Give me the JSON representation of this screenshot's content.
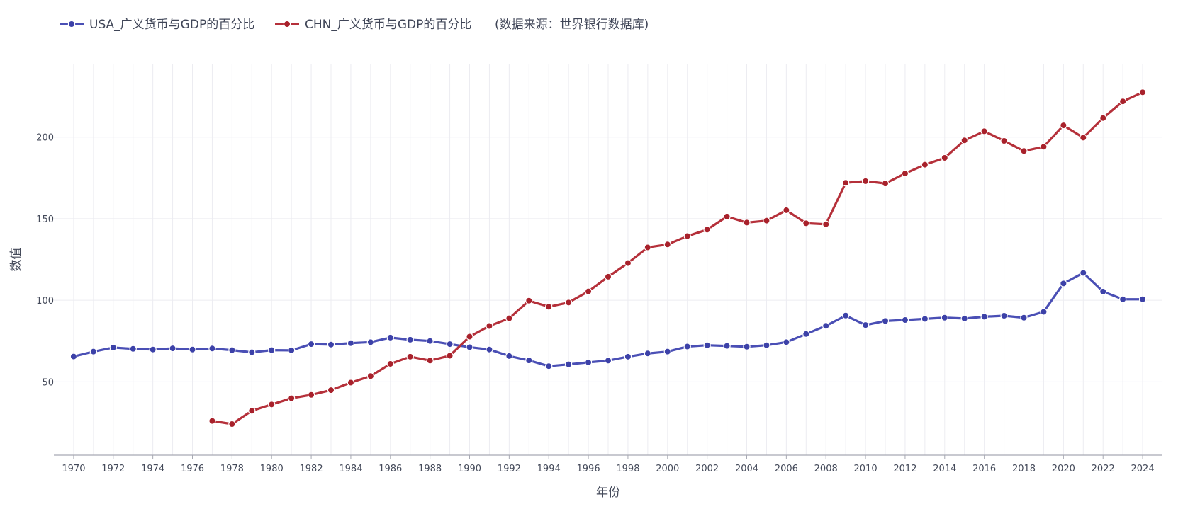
{
  "chart_data": {
    "type": "line",
    "title": "",
    "xlabel": "年份",
    "ylabel": "数值",
    "xlim": [
      1969.0,
      2025.0
    ],
    "ylim": [
      5,
      245
    ],
    "y_ticks": [
      50,
      100,
      150,
      200
    ],
    "x_ticks": [
      1970,
      1972,
      1974,
      1976,
      1978,
      1980,
      1982,
      1984,
      1986,
      1988,
      1990,
      1992,
      1994,
      1996,
      1998,
      2000,
      2002,
      2004,
      2006,
      2008,
      2010,
      2012,
      2014,
      2016,
      2018,
      2020,
      2022,
      2024
    ],
    "grid": true,
    "legend_position": "top-left",
    "legend_note": "(数据来源：世界银行数据库)",
    "series": [
      {
        "name": "USA_广义货币与GDP的百分比",
        "color": "#4a4fb5",
        "marker_color": "#3c41a8",
        "x": [
          1970,
          1971,
          1972,
          1973,
          1974,
          1975,
          1976,
          1977,
          1978,
          1979,
          1980,
          1981,
          1982,
          1983,
          1984,
          1985,
          1986,
          1987,
          1988,
          1989,
          1990,
          1991,
          1992,
          1993,
          1994,
          1995,
          1996,
          1997,
          1998,
          1999,
          2000,
          2001,
          2002,
          2003,
          2004,
          2005,
          2006,
          2007,
          2008,
          2009,
          2010,
          2011,
          2012,
          2013,
          2014,
          2015,
          2016,
          2017,
          2018,
          2019,
          2020,
          2021,
          2022,
          2023,
          2024
        ],
        "values": [
          65.5,
          68.5,
          71.0,
          70.2,
          69.8,
          70.5,
          69.8,
          70.4,
          69.4,
          68.1,
          69.4,
          69.3,
          73.1,
          72.8,
          73.7,
          74.3,
          77.1,
          75.8,
          75.0,
          73.1,
          71.2,
          69.8,
          65.8,
          63.1,
          59.6,
          60.7,
          61.9,
          63.0,
          65.4,
          67.4,
          68.5,
          71.6,
          72.4,
          72.0,
          71.5,
          72.4,
          74.3,
          79.3,
          84.3,
          90.6,
          84.8,
          87.3,
          87.9,
          88.6,
          89.3,
          88.8,
          89.9,
          90.5,
          89.3,
          92.9,
          110.3,
          116.8,
          105.3,
          100.6,
          100.6
        ]
      },
      {
        "name": "CHN_广义货币与GDP的百分比",
        "color": "#b5303a",
        "marker_color": "#a8212b",
        "x": [
          1977,
          1978,
          1979,
          1980,
          1981,
          1982,
          1983,
          1984,
          1985,
          1986,
          1987,
          1988,
          1989,
          1990,
          1991,
          1992,
          1993,
          1994,
          1995,
          1996,
          1997,
          1998,
          1999,
          2000,
          2001,
          2002,
          2003,
          2004,
          2005,
          2006,
          2007,
          2008,
          2009,
          2010,
          2011,
          2012,
          2013,
          2014,
          2015,
          2016,
          2017,
          2018,
          2019,
          2020,
          2021,
          2022,
          2023,
          2024
        ],
        "values": [
          26.0,
          24.1,
          32.2,
          36.1,
          39.9,
          42.0,
          44.9,
          49.5,
          53.5,
          61.0,
          65.4,
          63.0,
          66.0,
          77.7,
          84.2,
          88.9,
          99.7,
          96.0,
          98.6,
          105.4,
          114.4,
          122.8,
          132.4,
          134.2,
          139.3,
          143.3,
          151.3,
          147.6,
          148.8,
          155.2,
          147.2,
          146.6,
          172.0,
          173.0,
          171.6,
          177.7,
          183.1,
          187.3,
          198.0,
          203.6,
          197.7,
          191.5,
          194.1,
          207.2,
          199.7,
          211.7,
          221.9,
          227.5
        ]
      }
    ]
  }
}
